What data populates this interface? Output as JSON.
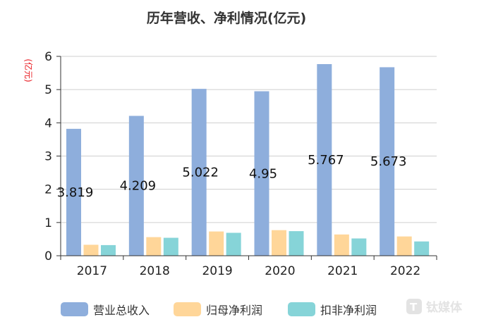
{
  "chart_data": {
    "type": "bar",
    "title": "历年营收、净利情况(亿元)",
    "ylabel": "(亿元)",
    "xlabel": "",
    "categories": [
      "2017",
      "2018",
      "2019",
      "2020",
      "2021",
      "2022"
    ],
    "ylim": [
      0,
      6
    ],
    "yticks": [
      0,
      1,
      2,
      3,
      4,
      5,
      6
    ],
    "grid": true,
    "legend_position": "bottom",
    "series": [
      {
        "name": "营业总收入",
        "color": "#8eaedc",
        "values": [
          3.819,
          4.209,
          5.022,
          4.95,
          5.767,
          5.673
        ],
        "data_labels": [
          "3.819",
          "4.209",
          "5.022",
          "4.95",
          "5.767",
          "5.673"
        ]
      },
      {
        "name": "归母净利润",
        "color": "#ffd699",
        "values": [
          0.33,
          0.56,
          0.73,
          0.77,
          0.64,
          0.58
        ]
      },
      {
        "name": "扣非净利润",
        "color": "#86d4d8",
        "values": [
          0.32,
          0.54,
          0.69,
          0.74,
          0.52,
          0.43
        ]
      }
    ]
  },
  "watermark": {
    "text": "钛媒体",
    "icon": "tmtpost-logo-icon"
  }
}
